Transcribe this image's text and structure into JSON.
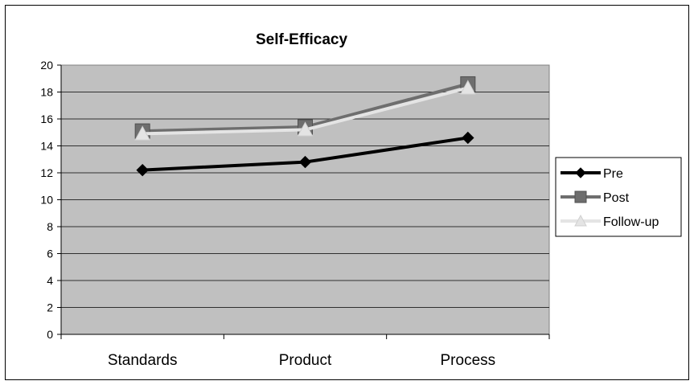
{
  "chart_data": {
    "type": "line",
    "title": "Self-Efficacy",
    "xlabel": "",
    "ylabel": "",
    "categories": [
      "Standards",
      "Product",
      "Process"
    ],
    "ylim": [
      0,
      20
    ],
    "yticks": [
      0,
      2,
      4,
      6,
      8,
      10,
      12,
      14,
      16,
      18,
      20
    ],
    "grid": true,
    "plot_background": "#c0c0c0",
    "legend_position": "right",
    "series": [
      {
        "name": "Pre",
        "values": [
          12.2,
          12.8,
          14.6
        ],
        "color": "#000000",
        "marker": "diamond"
      },
      {
        "name": "Post",
        "values": [
          15.1,
          15.4,
          18.6
        ],
        "color": "#6e6e6e",
        "marker": "square"
      },
      {
        "name": "Follow-up",
        "values": [
          14.9,
          15.2,
          18.3
        ],
        "color": "#e4e4e4",
        "marker": "triangle"
      }
    ]
  }
}
